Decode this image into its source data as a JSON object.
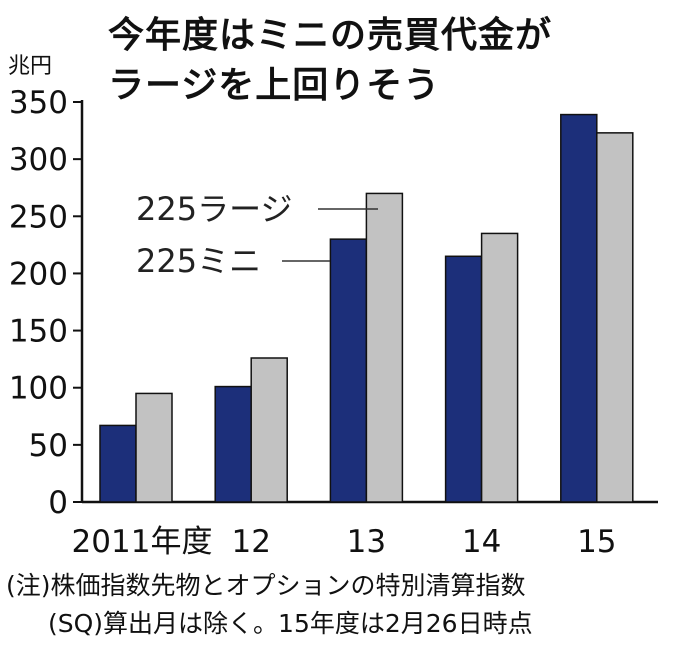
{
  "title_lines": [
    "今年度はミニの売買代金が",
    "ラージを上回りそう"
  ],
  "notes": [
    "(注)株価指数先物とオプションの特別清算指数",
    "(SQ)算出月は除く。15年度は2月26日時点"
  ],
  "colors": {
    "mini": "#1c2f7a",
    "large": "#c2c2c2",
    "axis": "#111111"
  },
  "chart_data": {
    "type": "bar",
    "ylabel": "兆円",
    "ylim": [
      0,
      350
    ],
    "yticks": [
      0,
      50,
      100,
      150,
      200,
      250,
      300,
      350
    ],
    "categories": [
      "2011年度",
      "12",
      "13",
      "14",
      "15"
    ],
    "series": [
      {
        "name": "225ミニ",
        "values": [
          67,
          101,
          230,
          215,
          339
        ]
      },
      {
        "name": "225ラージ",
        "values": [
          95,
          126,
          270,
          235,
          323
        ]
      }
    ],
    "legend": "inside, upper-left, labels connected to series with leader lines",
    "grid": false
  }
}
